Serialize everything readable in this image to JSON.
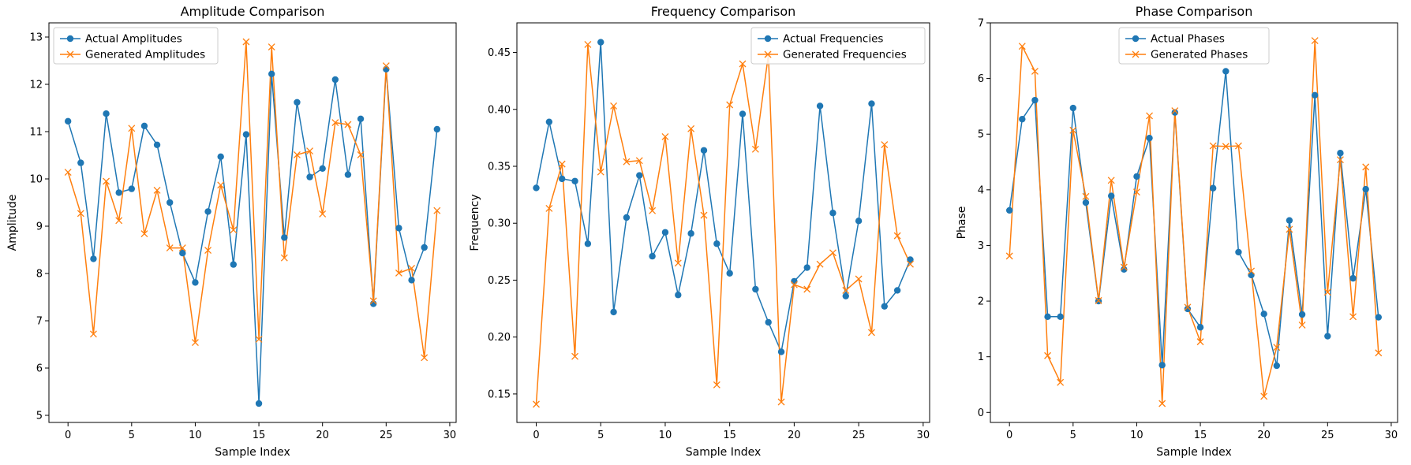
{
  "colors": {
    "actual": "#1f77b4",
    "generated": "#ff7f0e",
    "frame": "#000000",
    "legend_border": "#cccccc"
  },
  "chart_data": [
    {
      "type": "line",
      "title": "Amplitude Comparison",
      "xlabel": "Sample Index",
      "ylabel": "Amplitude",
      "xlim": [
        -1.5,
        30.5
      ],
      "ylim": [
        4.85,
        13.3
      ],
      "xticks": [
        0,
        5,
        10,
        15,
        20,
        25,
        30
      ],
      "yticks": [
        5,
        6,
        7,
        8,
        9,
        10,
        11,
        12,
        13
      ],
      "grid": false,
      "legend_position": "upper-left",
      "x": [
        0,
        1,
        2,
        3,
        4,
        5,
        6,
        7,
        8,
        9,
        10,
        11,
        12,
        13,
        14,
        15,
        16,
        17,
        18,
        19,
        20,
        21,
        22,
        23,
        24,
        25,
        26,
        27,
        28,
        29
      ],
      "series": [
        {
          "name": "Actual Amplitudes",
          "marker": "circle",
          "color": "#1f77b4",
          "values": [
            11.22,
            10.34,
            8.31,
            11.38,
            9.71,
            9.79,
            11.12,
            10.72,
            9.5,
            8.43,
            7.81,
            9.31,
            10.47,
            8.19,
            10.94,
            5.25,
            12.22,
            8.76,
            11.62,
            10.04,
            10.22,
            12.1,
            10.09,
            11.27,
            7.36,
            12.32,
            8.96,
            7.86,
            8.55,
            11.05
          ]
        },
        {
          "name": "Generated Amplitudes",
          "marker": "x",
          "color": "#ff7f0e",
          "values": [
            10.14,
            9.27,
            6.72,
            9.95,
            9.12,
            11.07,
            8.84,
            9.76,
            8.54,
            8.54,
            6.54,
            8.49,
            9.87,
            8.92,
            12.9,
            6.61,
            12.79,
            8.33,
            10.51,
            10.59,
            9.26,
            11.19,
            11.15,
            10.51,
            7.42,
            12.39,
            8.01,
            8.11,
            6.22,
            9.33
          ]
        }
      ]
    },
    {
      "type": "line",
      "title": "Frequency Comparison",
      "xlabel": "Sample Index",
      "ylabel": "Frequency",
      "xlim": [
        -1.5,
        30.5
      ],
      "ylim": [
        0.125,
        0.476
      ],
      "xticks": [
        0,
        5,
        10,
        15,
        20,
        25,
        30
      ],
      "yticks": [
        0.15,
        0.2,
        0.25,
        0.3,
        0.35,
        0.4,
        0.45
      ],
      "ytick_labels": [
        "0.15",
        "0.20",
        "0.25",
        "0.30",
        "0.35",
        "0.40",
        "0.45"
      ],
      "grid": false,
      "legend_position": "upper-right",
      "x": [
        0,
        1,
        2,
        3,
        4,
        5,
        6,
        7,
        8,
        9,
        10,
        11,
        12,
        13,
        14,
        15,
        16,
        17,
        18,
        19,
        20,
        21,
        22,
        23,
        24,
        25,
        26,
        27,
        28,
        29
      ],
      "series": [
        {
          "name": "Actual Frequencies",
          "marker": "circle",
          "color": "#1f77b4",
          "values": [
            0.331,
            0.389,
            0.339,
            0.337,
            0.282,
            0.459,
            0.222,
            0.305,
            0.342,
            0.271,
            0.292,
            0.237,
            0.291,
            0.364,
            0.282,
            0.256,
            0.396,
            0.242,
            0.213,
            0.187,
            0.249,
            0.261,
            0.403,
            0.309,
            0.236,
            0.302,
            0.405,
            0.227,
            0.241,
            0.268
          ]
        },
        {
          "name": "Generated Frequencies",
          "marker": "x",
          "color": "#ff7f0e",
          "values": [
            0.141,
            0.313,
            0.352,
            0.183,
            0.457,
            0.345,
            0.403,
            0.354,
            0.355,
            0.311,
            0.376,
            0.265,
            0.383,
            0.307,
            0.158,
            0.404,
            0.44,
            0.365,
            0.448,
            0.143,
            0.246,
            0.242,
            0.264,
            0.274,
            0.241,
            0.251,
            0.204,
            0.369,
            0.289,
            0.264
          ]
        }
      ]
    },
    {
      "type": "line",
      "title": "Phase Comparison",
      "xlabel": "Sample Index",
      "ylabel": "Phase",
      "xlim": [
        -1.5,
        30.5
      ],
      "ylim": [
        -0.18,
        7.0
      ],
      "xticks": [
        0,
        5,
        10,
        15,
        20,
        25,
        30
      ],
      "yticks": [
        0,
        1,
        2,
        3,
        4,
        5,
        6,
        7
      ],
      "grid": false,
      "legend_position": "upper-center",
      "x": [
        0,
        1,
        2,
        3,
        4,
        5,
        6,
        7,
        8,
        9,
        10,
        11,
        12,
        13,
        14,
        15,
        16,
        17,
        18,
        19,
        20,
        21,
        22,
        23,
        24,
        25,
        26,
        27,
        28,
        29
      ],
      "series": [
        {
          "name": "Actual Phases",
          "marker": "circle",
          "color": "#1f77b4",
          "values": [
            3.63,
            5.27,
            5.61,
            1.72,
            1.72,
            5.47,
            3.77,
            2.0,
            3.89,
            2.57,
            4.24,
            4.93,
            0.85,
            5.39,
            1.86,
            1.53,
            4.03,
            6.13,
            2.88,
            2.47,
            1.77,
            0.84,
            3.45,
            1.76,
            5.7,
            1.37,
            4.66,
            2.41,
            4.01,
            1.71
          ]
        },
        {
          "name": "Generated Phases",
          "marker": "x",
          "color": "#ff7f0e",
          "values": [
            2.81,
            6.58,
            6.13,
            1.02,
            0.54,
            5.07,
            3.88,
            2.01,
            4.17,
            2.61,
            3.96,
            5.33,
            0.16,
            5.42,
            1.89,
            1.27,
            4.79,
            4.78,
            4.79,
            2.54,
            0.29,
            1.17,
            3.29,
            1.57,
            6.68,
            2.16,
            4.54,
            1.72,
            4.41,
            1.07
          ]
        }
      ]
    }
  ]
}
